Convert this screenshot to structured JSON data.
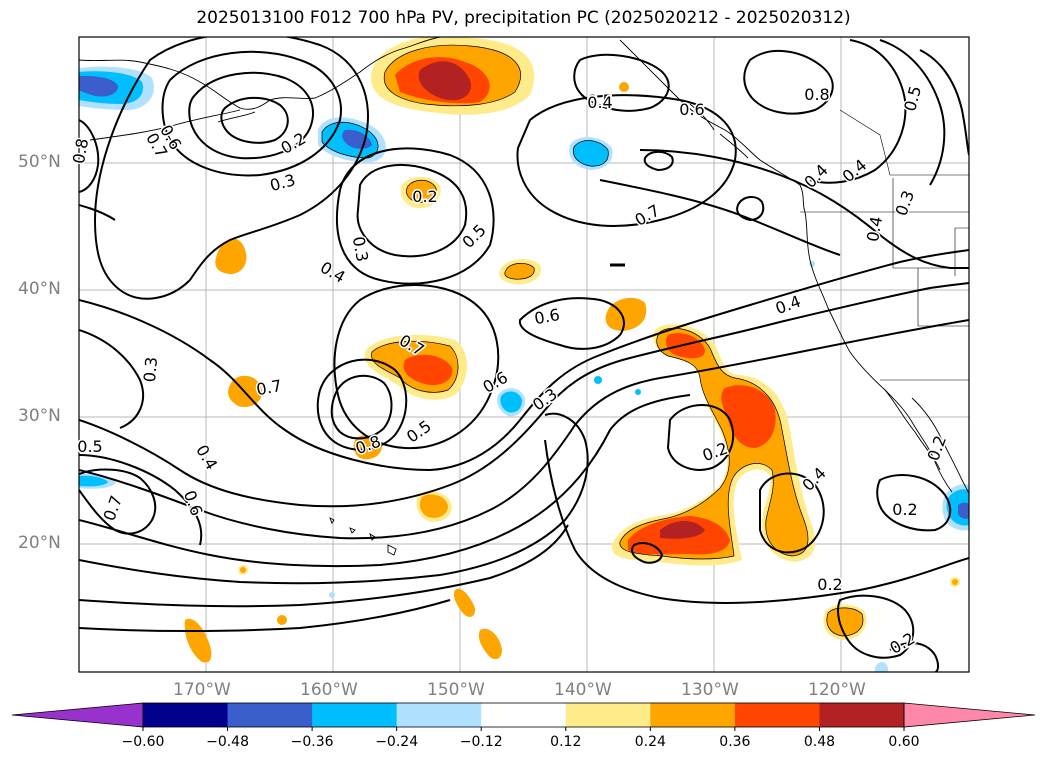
{
  "title": "2025013100 F012 700 hPa PV, precipitation PC (2025020212 - 2025020312)",
  "lat_labels": [
    "50°N",
    "40°N",
    "30°N",
    "20°N"
  ],
  "lon_labels": [
    "170°W",
    "160°W",
    "150°W",
    "140°W",
    "130°W",
    "120°W"
  ],
  "colorbar": {
    "ticks": [
      "−0.60",
      "−0.48",
      "−0.36",
      "−0.24",
      "−0.12",
      "0.12",
      "0.24",
      "0.36",
      "0.48",
      "0.60"
    ],
    "colors": [
      "#9932cc",
      "#00008b",
      "#3a5fcd",
      "#00bfff",
      "#b0e2ff",
      "#ffffff",
      "#ffeb8a",
      "#ffa500",
      "#ff4500",
      "#b22222",
      "#ff88aa"
    ]
  },
  "contour_labels": [
    "0.8",
    "0.6",
    "0.7",
    "0.2",
    "0.3",
    "0.2",
    "0.3",
    "0.4",
    "0.5",
    "0.5",
    "0.8",
    "0.6",
    "0.7",
    "0.5",
    "0.4",
    "0.4",
    "0.3",
    "0.6",
    "0.4",
    "0.3",
    "0.7",
    "0.7",
    "0.6",
    "0.3",
    "0.8",
    "0.5",
    "0.2",
    "0.5",
    "0.4",
    "0.7",
    "0.6",
    "0.2",
    "0.4",
    "0.2",
    "0.2",
    "0.2",
    "0.4",
    "0.4"
  ]
}
